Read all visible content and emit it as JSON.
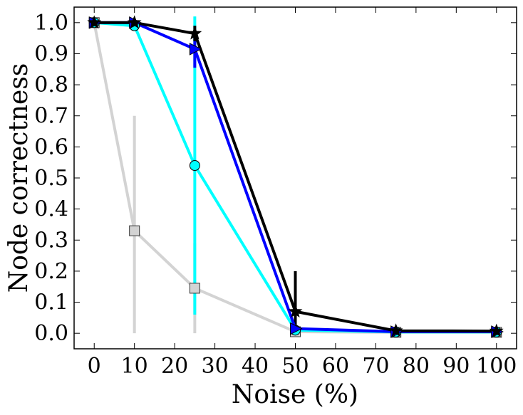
{
  "chart_data": {
    "type": "line",
    "xlabel": "Noise (%)",
    "ylabel": "Node correctness",
    "xlim": [
      -5,
      105
    ],
    "ylim": [
      -0.05,
      1.05
    ],
    "xticks": [
      "0",
      "10",
      "20",
      "30",
      "40",
      "50",
      "60",
      "70",
      "80",
      "90",
      "100"
    ],
    "yticks": [
      "0.0",
      "0.1",
      "0.2",
      "0.3",
      "0.4",
      "0.5",
      "0.6",
      "0.7",
      "0.8",
      "0.9",
      "1.0"
    ],
    "grid": false,
    "series": [
      {
        "color": "#d3d3d3",
        "marker": "square",
        "x": [
          0,
          10,
          25,
          50,
          75,
          100
        ],
        "y": [
          1.0,
          0.33,
          0.145,
          0.005,
          0.003,
          0.003
        ],
        "err": [
          0,
          0.37,
          0.145,
          0.005,
          0.003,
          0.003
        ]
      },
      {
        "color": "#00ffff",
        "marker": "circle",
        "x": [
          0,
          10,
          25,
          50,
          75,
          100
        ],
        "y": [
          1.0,
          0.99,
          0.54,
          0.01,
          0.004,
          0.004
        ],
        "err": [
          0,
          0.01,
          0.48,
          0.01,
          0.003,
          0.003
        ]
      },
      {
        "color": "#0000ff",
        "marker": "triangle-right",
        "x": [
          0,
          10,
          25,
          50,
          75,
          100
        ],
        "y": [
          1.0,
          1.0,
          0.915,
          0.015,
          0.005,
          0.005
        ],
        "err": [
          0,
          0,
          0.06,
          0.01,
          0.003,
          0.003
        ]
      },
      {
        "color": "#000000",
        "marker": "star",
        "x": [
          0,
          10,
          25,
          50,
          75,
          100
        ],
        "y": [
          1.0,
          1.0,
          0.965,
          0.07,
          0.008,
          0.007
        ],
        "err": [
          0,
          0,
          0.025,
          0.13,
          0.003,
          0.003
        ]
      }
    ]
  }
}
